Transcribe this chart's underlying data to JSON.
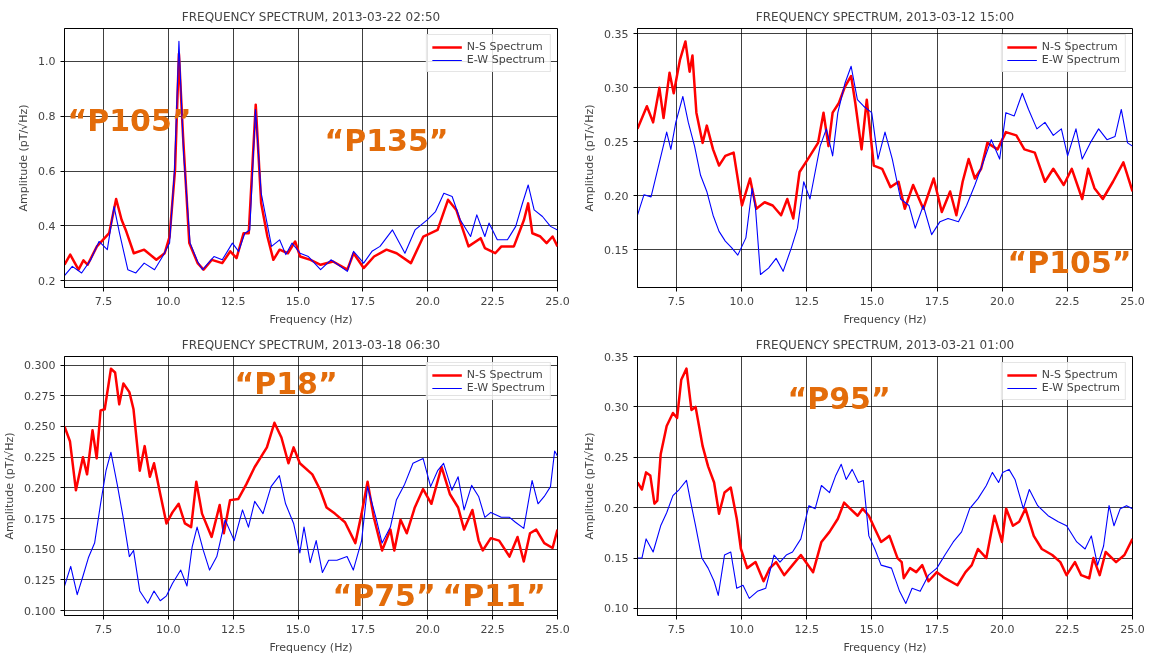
{
  "chart_data": [
    {
      "type": "line",
      "title": "FREQUENCY SPECTRUM, 2013-03-22 02:50",
      "xlabel": "Frequency (Hz)",
      "ylabel": "Amplitude (pT/√Hz)",
      "annotations": [
        "“P105”",
        "“P135”"
      ],
      "grid": true,
      "legend": "top right",
      "line_style": "solid",
      "marker": "none",
      "xlim": [
        6,
        25
      ],
      "ylim": [
        0.175,
        1.12
      ],
      "xticks": [
        7.5,
        {
          "value": 10,
          "label": "10.0"
        },
        12.5,
        {
          "value": 15,
          "label": "15.0"
        },
        17.5,
        {
          "value": 20,
          "label": "20.0"
        },
        22.5,
        {
          "value": 25,
          "label": "25.0"
        }
      ],
      "yticks": [
        0.2,
        0.4,
        0.6,
        0.8,
        {
          "value": 1,
          "label": "1.0"
        }
      ],
      "series": [
        {
          "name": "N-S Spectrum",
          "color": "#ff0000",
          "x": [
            6.0,
            6.22,
            6.54,
            6.73,
            6.89,
            7.25,
            7.49,
            7.72,
            7.99,
            8.2,
            8.36,
            8.67,
            9.07,
            9.54,
            9.86,
            10.05,
            10.26,
            10.41,
            10.57,
            10.81,
            11.13,
            11.36,
            11.68,
            12.08,
            12.39,
            12.63,
            12.9,
            13.1,
            13.37,
            13.58,
            13.82,
            14.05,
            14.29,
            14.61,
            14.89,
            15.08,
            15.48,
            15.87,
            16.35,
            16.9,
            17.14,
            17.53,
            17.93,
            18.41,
            18.8,
            19.35,
            19.83,
            20.38,
            20.78,
            21.1,
            21.57,
            22.04,
            22.2,
            22.6,
            22.84,
            23.32,
            23.71,
            23.87,
            24.03,
            24.34,
            24.58,
            24.81,
            25.0
          ],
          "values": [
            0.258,
            0.295,
            0.24,
            0.274,
            0.258,
            0.325,
            0.35,
            0.373,
            0.498,
            0.422,
            0.385,
            0.3,
            0.313,
            0.276,
            0.3,
            0.361,
            0.604,
            1.028,
            0.725,
            0.337,
            0.264,
            0.24,
            0.276,
            0.264,
            0.307,
            0.282,
            0.373,
            0.373,
            0.842,
            0.482,
            0.361,
            0.276,
            0.313,
            0.3,
            0.343,
            0.288,
            0.276,
            0.258,
            0.27,
            0.24,
            0.3,
            0.246,
            0.288,
            0.313,
            0.3,
            0.264,
            0.361,
            0.385,
            0.495,
            0.458,
            0.325,
            0.355,
            0.319,
            0.3,
            0.325,
            0.325,
            0.422,
            0.482,
            0.373,
            0.361,
            0.337,
            0.361,
            0.325
          ]
        },
        {
          "name": "E-W Spectrum",
          "color": "#0000ff",
          "x": [
            6.0,
            6.3,
            6.66,
            7.01,
            7.33,
            7.65,
            7.91,
            8.12,
            8.44,
            8.75,
            9.07,
            9.47,
            9.78,
            10.05,
            10.24,
            10.41,
            10.59,
            10.84,
            11.13,
            11.32,
            11.76,
            12.08,
            12.47,
            12.71,
            12.95,
            13.14,
            13.36,
            13.58,
            13.98,
            14.29,
            14.53,
            14.77,
            15.08,
            15.4,
            15.87,
            16.27,
            16.9,
            17.14,
            17.53,
            17.85,
            18.16,
            18.64,
            19.12,
            19.51,
            19.98,
            20.3,
            20.62,
            20.94,
            21.25,
            21.65,
            21.89,
            22.2,
            22.36,
            22.68,
            23.07,
            23.39,
            23.63,
            23.87,
            24.1,
            24.42,
            24.73,
            25.0
          ],
          "values": [
            0.218,
            0.252,
            0.228,
            0.276,
            0.343,
            0.313,
            0.47,
            0.373,
            0.24,
            0.228,
            0.264,
            0.24,
            0.288,
            0.337,
            0.604,
            1.073,
            0.664,
            0.337,
            0.27,
            0.24,
            0.288,
            0.276,
            0.337,
            0.307,
            0.373,
            0.385,
            0.824,
            0.519,
            0.325,
            0.349,
            0.295,
            0.337,
            0.3,
            0.288,
            0.24,
            0.276,
            0.234,
            0.307,
            0.264,
            0.307,
            0.325,
            0.385,
            0.3,
            0.385,
            0.422,
            0.452,
            0.519,
            0.507,
            0.422,
            0.361,
            0.44,
            0.361,
            0.41,
            0.349,
            0.349,
            0.398,
            0.476,
            0.549,
            0.458,
            0.434,
            0.398,
            0.385
          ]
        }
      ]
    },
    {
      "type": "line",
      "title": "FREQUENCY SPECTRUM, 2013-03-12 15:00",
      "xlabel": "Frequency (Hz)",
      "ylabel": "Amplitude (pT/√Hz)",
      "annotations": [
        "“P105”"
      ],
      "grid": true,
      "legend": "top right",
      "line_style": "solid",
      "marker": "none",
      "xlim": [
        6,
        25
      ],
      "ylim": [
        0.115,
        0.355
      ],
      "xticks": [
        7.5,
        {
          "value": 10,
          "label": "10.0"
        },
        12.5,
        {
          "value": 15,
          "label": "15.0"
        },
        17.5,
        {
          "value": 20,
          "label": "20.0"
        },
        22.5,
        {
          "value": 25,
          "label": "25.0"
        }
      ],
      "yticks": [
        0.15,
        {
          "value": 0.2,
          "label": "0.20"
        },
        0.25,
        {
          "value": 0.3,
          "label": "0.30"
        },
        0.35
      ],
      "series": [
        {
          "name": "N-S Spectrum",
          "color": "#ff0000",
          "x": [
            6.0,
            6.36,
            6.6,
            6.84,
            7.0,
            7.23,
            7.39,
            7.63,
            7.84,
            8.0,
            8.11,
            8.26,
            8.5,
            8.66,
            8.9,
            9.13,
            9.37,
            9.69,
            10.01,
            10.32,
            10.56,
            10.88,
            11.19,
            11.51,
            11.75,
            11.98,
            12.22,
            12.54,
            12.93,
            13.14,
            13.33,
            13.49,
            13.73,
            13.96,
            14.2,
            14.36,
            14.6,
            14.8,
            15.07,
            15.39,
            15.71,
            16.02,
            16.26,
            16.58,
            16.97,
            17.37,
            17.68,
            18.0,
            18.24,
            18.48,
            18.71,
            18.95,
            19.19,
            19.43,
            19.82,
            20.14,
            20.54,
            20.85,
            21.25,
            21.64,
            21.96,
            22.36,
            22.67,
            23.07,
            23.3,
            23.54,
            23.86,
            24.25,
            24.65,
            25.0
          ],
          "values": [
            0.262,
            0.283,
            0.268,
            0.3,
            0.272,
            0.314,
            0.295,
            0.326,
            0.343,
            0.315,
            0.33,
            0.277,
            0.249,
            0.265,
            0.243,
            0.228,
            0.237,
            0.24,
            0.191,
            0.216,
            0.188,
            0.194,
            0.191,
            0.182,
            0.197,
            0.179,
            0.222,
            0.234,
            0.249,
            0.277,
            0.246,
            0.277,
            0.286,
            0.301,
            0.311,
            0.286,
            0.243,
            0.289,
            0.228,
            0.225,
            0.208,
            0.213,
            0.188,
            0.21,
            0.188,
            0.216,
            0.185,
            0.204,
            0.182,
            0.213,
            0.234,
            0.216,
            0.225,
            0.249,
            0.243,
            0.259,
            0.256,
            0.243,
            0.24,
            0.213,
            0.225,
            0.21,
            0.225,
            0.197,
            0.225,
            0.207,
            0.197,
            0.213,
            0.231,
            0.204
          ]
        },
        {
          "name": "E-W Spectrum",
          "color": "#0000ff",
          "x": [
            6.0,
            6.25,
            6.52,
            6.84,
            7.12,
            7.28,
            7.47,
            7.74,
            7.95,
            8.19,
            8.42,
            8.66,
            8.9,
            9.13,
            9.37,
            9.61,
            9.85,
            10.16,
            10.4,
            10.53,
            10.72,
            11.03,
            11.32,
            11.59,
            11.91,
            12.14,
            12.38,
            12.62,
            13.01,
            13.25,
            13.49,
            13.69,
            13.96,
            14.2,
            14.44,
            14.68,
            14.99,
            15.23,
            15.5,
            15.78,
            16.1,
            16.42,
            16.66,
            16.97,
            17.29,
            17.61,
            17.92,
            18.32,
            18.63,
            18.95,
            19.27,
            19.58,
            19.9,
            20.14,
            20.46,
            20.77,
            21.01,
            21.33,
            21.64,
            21.96,
            22.27,
            22.51,
            22.83,
            23.07,
            23.38,
            23.7,
            24.02,
            24.33,
            24.57,
            24.81,
            25.0
          ],
          "values": [
            0.182,
            0.201,
            0.199,
            0.231,
            0.259,
            0.243,
            0.268,
            0.292,
            0.268,
            0.246,
            0.219,
            0.204,
            0.182,
            0.167,
            0.158,
            0.152,
            0.145,
            0.161,
            0.207,
            0.188,
            0.127,
            0.133,
            0.142,
            0.13,
            0.152,
            0.17,
            0.213,
            0.197,
            0.246,
            0.262,
            0.237,
            0.277,
            0.304,
            0.32,
            0.289,
            0.283,
            0.277,
            0.234,
            0.259,
            0.234,
            0.197,
            0.191,
            0.17,
            0.191,
            0.164,
            0.176,
            0.179,
            0.176,
            0.191,
            0.21,
            0.231,
            0.252,
            0.234,
            0.277,
            0.274,
            0.295,
            0.28,
            0.262,
            0.268,
            0.256,
            0.262,
            0.237,
            0.262,
            0.234,
            0.249,
            0.262,
            0.252,
            0.255,
            0.28,
            0.249,
            0.246
          ]
        }
      ]
    },
    {
      "type": "line",
      "title": "FREQUENCY SPECTRUM, 2013-03-18 06:30",
      "xlabel": "Frequency (Hz)",
      "ylabel": "Amplitude (pT/√Hz)",
      "annotations": [
        "“P75”",
        "“P18”",
        "“P11”"
      ],
      "grid": true,
      "legend": "top right",
      "line_style": "solid",
      "marker": "none",
      "xlim": [
        6,
        25
      ],
      "ylim": [
        0.096,
        0.307
      ],
      "xticks": [
        7.5,
        {
          "value": 10,
          "label": "10.0"
        },
        12.5,
        {
          "value": 15,
          "label": "15.0"
        },
        17.5,
        {
          "value": 20,
          "label": "20.0"
        },
        22.5,
        {
          "value": 25,
          "label": "25.0"
        }
      ],
      "yticks": [
        {
          "value": 0.1,
          "label": "0.100"
        },
        0.125,
        {
          "value": 0.15,
          "label": "0.150"
        },
        0.175,
        {
          "value": 0.2,
          "label": "0.200"
        },
        0.225,
        {
          "value": 0.25,
          "label": "0.250"
        },
        0.275,
        {
          "value": 0.3,
          "label": "0.300"
        }
      ],
      "series": [
        {
          "name": "N-S Spectrum",
          "color": "#ff0000",
          "x": [
            6.0,
            6.21,
            6.44,
            6.71,
            6.87,
            7.08,
            7.24,
            7.39,
            7.55,
            7.79,
            7.95,
            8.11,
            8.27,
            8.5,
            8.66,
            8.9,
            9.09,
            9.29,
            9.45,
            9.69,
            9.93,
            10.16,
            10.4,
            10.64,
            10.88,
            11.08,
            11.3,
            11.67,
            11.98,
            12.14,
            12.38,
            12.7,
            13.01,
            13.33,
            13.8,
            14.09,
            14.36,
            14.63,
            14.83,
            15.07,
            15.55,
            15.86,
            16.1,
            16.42,
            16.81,
            17.21,
            17.45,
            17.68,
            17.92,
            18.24,
            18.56,
            18.71,
            18.95,
            19.19,
            19.5,
            19.82,
            20.14,
            20.53,
            20.85,
            21.17,
            21.4,
            21.72,
            21.96,
            22.12,
            22.43,
            22.75,
            23.15,
            23.46,
            23.7,
            23.94,
            24.18,
            24.49,
            24.81,
            25.0
          ],
          "values": [
            0.25,
            0.238,
            0.198,
            0.225,
            0.211,
            0.247,
            0.224,
            0.263,
            0.264,
            0.297,
            0.294,
            0.268,
            0.285,
            0.278,
            0.264,
            0.214,
            0.234,
            0.209,
            0.22,
            0.195,
            0.171,
            0.18,
            0.187,
            0.171,
            0.168,
            0.205,
            0.179,
            0.16,
            0.186,
            0.163,
            0.19,
            0.191,
            0.203,
            0.217,
            0.233,
            0.253,
            0.241,
            0.22,
            0.233,
            0.22,
            0.211,
            0.198,
            0.184,
            0.179,
            0.172,
            0.155,
            0.179,
            0.205,
            0.176,
            0.149,
            0.166,
            0.149,
            0.174,
            0.163,
            0.184,
            0.199,
            0.187,
            0.217,
            0.195,
            0.184,
            0.166,
            0.182,
            0.157,
            0.149,
            0.159,
            0.157,
            0.144,
            0.16,
            0.14,
            0.163,
            0.166,
            0.155,
            0.151,
            0.166
          ]
        },
        {
          "name": "E-W Spectrum",
          "color": "#0000ff",
          "x": [
            6.0,
            6.24,
            6.49,
            6.71,
            6.92,
            7.16,
            7.39,
            7.6,
            7.79,
            8.03,
            8.26,
            8.5,
            8.66,
            8.9,
            9.21,
            9.45,
            9.69,
            9.93,
            10.16,
            10.48,
            10.72,
            10.92,
            11.11,
            11.35,
            11.59,
            11.87,
            12.19,
            12.54,
            12.86,
            13.09,
            13.33,
            13.65,
            13.96,
            14.28,
            14.52,
            14.83,
            15.07,
            15.23,
            15.47,
            15.7,
            15.94,
            16.18,
            16.5,
            16.89,
            17.13,
            17.45,
            17.68,
            18.0,
            18.24,
            18.56,
            18.79,
            19.11,
            19.43,
            19.82,
            20.11,
            20.38,
            20.61,
            20.93,
            21.17,
            21.4,
            21.69,
            21.96,
            22.2,
            22.43,
            22.83,
            23.15,
            23.38,
            23.7,
            24.02,
            24.25,
            24.49,
            24.73,
            24.89,
            25.0
          ],
          "values": [
            0.12,
            0.136,
            0.113,
            0.128,
            0.143,
            0.155,
            0.187,
            0.214,
            0.229,
            0.203,
            0.176,
            0.144,
            0.149,
            0.116,
            0.106,
            0.116,
            0.108,
            0.112,
            0.122,
            0.133,
            0.12,
            0.152,
            0.168,
            0.149,
            0.133,
            0.144,
            0.174,
            0.157,
            0.182,
            0.168,
            0.189,
            0.179,
            0.201,
            0.21,
            0.187,
            0.171,
            0.147,
            0.168,
            0.139,
            0.157,
            0.131,
            0.141,
            0.141,
            0.144,
            0.133,
            0.157,
            0.201,
            0.176,
            0.155,
            0.168,
            0.19,
            0.203,
            0.22,
            0.224,
            0.201,
            0.214,
            0.22,
            0.198,
            0.209,
            0.182,
            0.202,
            0.193,
            0.176,
            0.18,
            0.176,
            0.176,
            0.172,
            0.167,
            0.206,
            0.187,
            0.193,
            0.201,
            0.23,
            0.226
          ]
        }
      ]
    },
    {
      "type": "line",
      "title": "FREQUENCY SPECTRUM, 2013-03-21 01:00",
      "xlabel": "Frequency (Hz)",
      "ylabel": "Amplitude (pT/√Hz)",
      "annotations": [
        "“P95”"
      ],
      "grid": true,
      "legend": "top right",
      "line_style": "solid",
      "marker": "none",
      "xlim": [
        6,
        25
      ],
      "ylim": [
        0.093,
        0.35
      ],
      "xticks": [
        7.5,
        {
          "value": 10,
          "label": "10.0"
        },
        12.5,
        {
          "value": 15,
          "label": "15.0"
        },
        17.5,
        {
          "value": 20,
          "label": "20.0"
        },
        22.5,
        {
          "value": 25,
          "label": "25.0"
        }
      ],
      "yticks": [
        {
          "value": 0.1,
          "label": "0.10"
        },
        0.15,
        {
          "value": 0.2,
          "label": "0.20"
        },
        0.25,
        {
          "value": 0.3,
          "label": "0.30"
        },
        0.35
      ],
      "series": [
        {
          "name": "N-S Spectrum",
          "color": "#ff0000",
          "x": [
            6.0,
            6.17,
            6.33,
            6.49,
            6.65,
            6.76,
            6.89,
            7.12,
            7.36,
            7.52,
            7.68,
            7.88,
            8.07,
            8.23,
            8.5,
            8.71,
            8.94,
            9.13,
            9.34,
            9.58,
            9.81,
            9.97,
            10.21,
            10.53,
            10.84,
            11.08,
            11.32,
            11.63,
            11.95,
            12.27,
            12.74,
            13.06,
            13.37,
            13.69,
            13.93,
            14.16,
            14.45,
            14.64,
            14.88,
            15.11,
            15.35,
            15.67,
            15.98,
            16.14,
            16.22,
            16.46,
            16.7,
            16.93,
            17.17,
            17.49,
            17.8,
            18.28,
            18.59,
            18.83,
            19.07,
            19.39,
            19.7,
            19.99,
            20.15,
            20.41,
            20.65,
            20.89,
            21.21,
            21.52,
            21.92,
            22.23,
            22.47,
            22.79,
            23.03,
            23.34,
            23.5,
            23.74,
            23.97,
            24.37,
            24.69,
            25.0
          ],
          "values": [
            0.225,
            0.218,
            0.235,
            0.232,
            0.204,
            0.207,
            0.253,
            0.281,
            0.294,
            0.289,
            0.327,
            0.338,
            0.297,
            0.3,
            0.261,
            0.241,
            0.225,
            0.194,
            0.215,
            0.22,
            0.189,
            0.159,
            0.14,
            0.146,
            0.127,
            0.14,
            0.146,
            0.133,
            0.143,
            0.153,
            0.136,
            0.166,
            0.176,
            0.189,
            0.205,
            0.199,
            0.192,
            0.199,
            0.192,
            0.179,
            0.166,
            0.172,
            0.15,
            0.146,
            0.13,
            0.14,
            0.136,
            0.143,
            0.127,
            0.136,
            0.13,
            0.123,
            0.136,
            0.143,
            0.159,
            0.15,
            0.192,
            0.166,
            0.199,
            0.182,
            0.186,
            0.199,
            0.172,
            0.159,
            0.153,
            0.146,
            0.133,
            0.146,
            0.133,
            0.13,
            0.15,
            0.133,
            0.156,
            0.146,
            0.153,
            0.169
          ]
        },
        {
          "name": "E-W Spectrum",
          "color": "#0000ff",
          "x": [
            6.0,
            6.17,
            6.33,
            6.6,
            6.89,
            7.12,
            7.36,
            7.6,
            7.88,
            8.07,
            8.23,
            8.47,
            8.71,
            8.94,
            9.1,
            9.34,
            9.58,
            9.81,
            10.05,
            10.29,
            10.6,
            10.92,
            11.24,
            11.47,
            11.71,
            11.95,
            12.27,
            12.58,
            12.82,
            13.06,
            13.37,
            13.61,
            13.82,
            14.01,
            14.24,
            14.48,
            14.67,
            14.88,
            15.11,
            15.35,
            15.75,
            16.06,
            16.3,
            16.54,
            16.85,
            17.17,
            17.49,
            17.8,
            18.12,
            18.44,
            18.75,
            19.07,
            19.39,
            19.62,
            19.86,
            20.02,
            20.26,
            20.49,
            20.81,
            21.04,
            21.36,
            21.76,
            22.15,
            22.47,
            22.86,
            23.18,
            23.42,
            23.66,
            23.89,
            24.1,
            24.29,
            24.53,
            24.77,
            25.0
          ],
          "values": [
            0.15,
            0.15,
            0.169,
            0.156,
            0.182,
            0.195,
            0.212,
            0.218,
            0.227,
            0.202,
            0.182,
            0.15,
            0.14,
            0.127,
            0.113,
            0.153,
            0.156,
            0.12,
            0.123,
            0.11,
            0.117,
            0.12,
            0.153,
            0.146,
            0.153,
            0.156,
            0.169,
            0.202,
            0.199,
            0.222,
            0.215,
            0.232,
            0.243,
            0.228,
            0.238,
            0.225,
            0.227,
            0.172,
            0.159,
            0.143,
            0.14,
            0.117,
            0.105,
            0.12,
            0.117,
            0.133,
            0.14,
            0.153,
            0.166,
            0.176,
            0.199,
            0.209,
            0.222,
            0.235,
            0.225,
            0.235,
            0.238,
            0.228,
            0.199,
            0.218,
            0.202,
            0.192,
            0.186,
            0.182,
            0.166,
            0.159,
            0.172,
            0.143,
            0.162,
            0.202,
            0.182,
            0.199,
            0.202,
            0.199
          ]
        }
      ]
    }
  ]
}
